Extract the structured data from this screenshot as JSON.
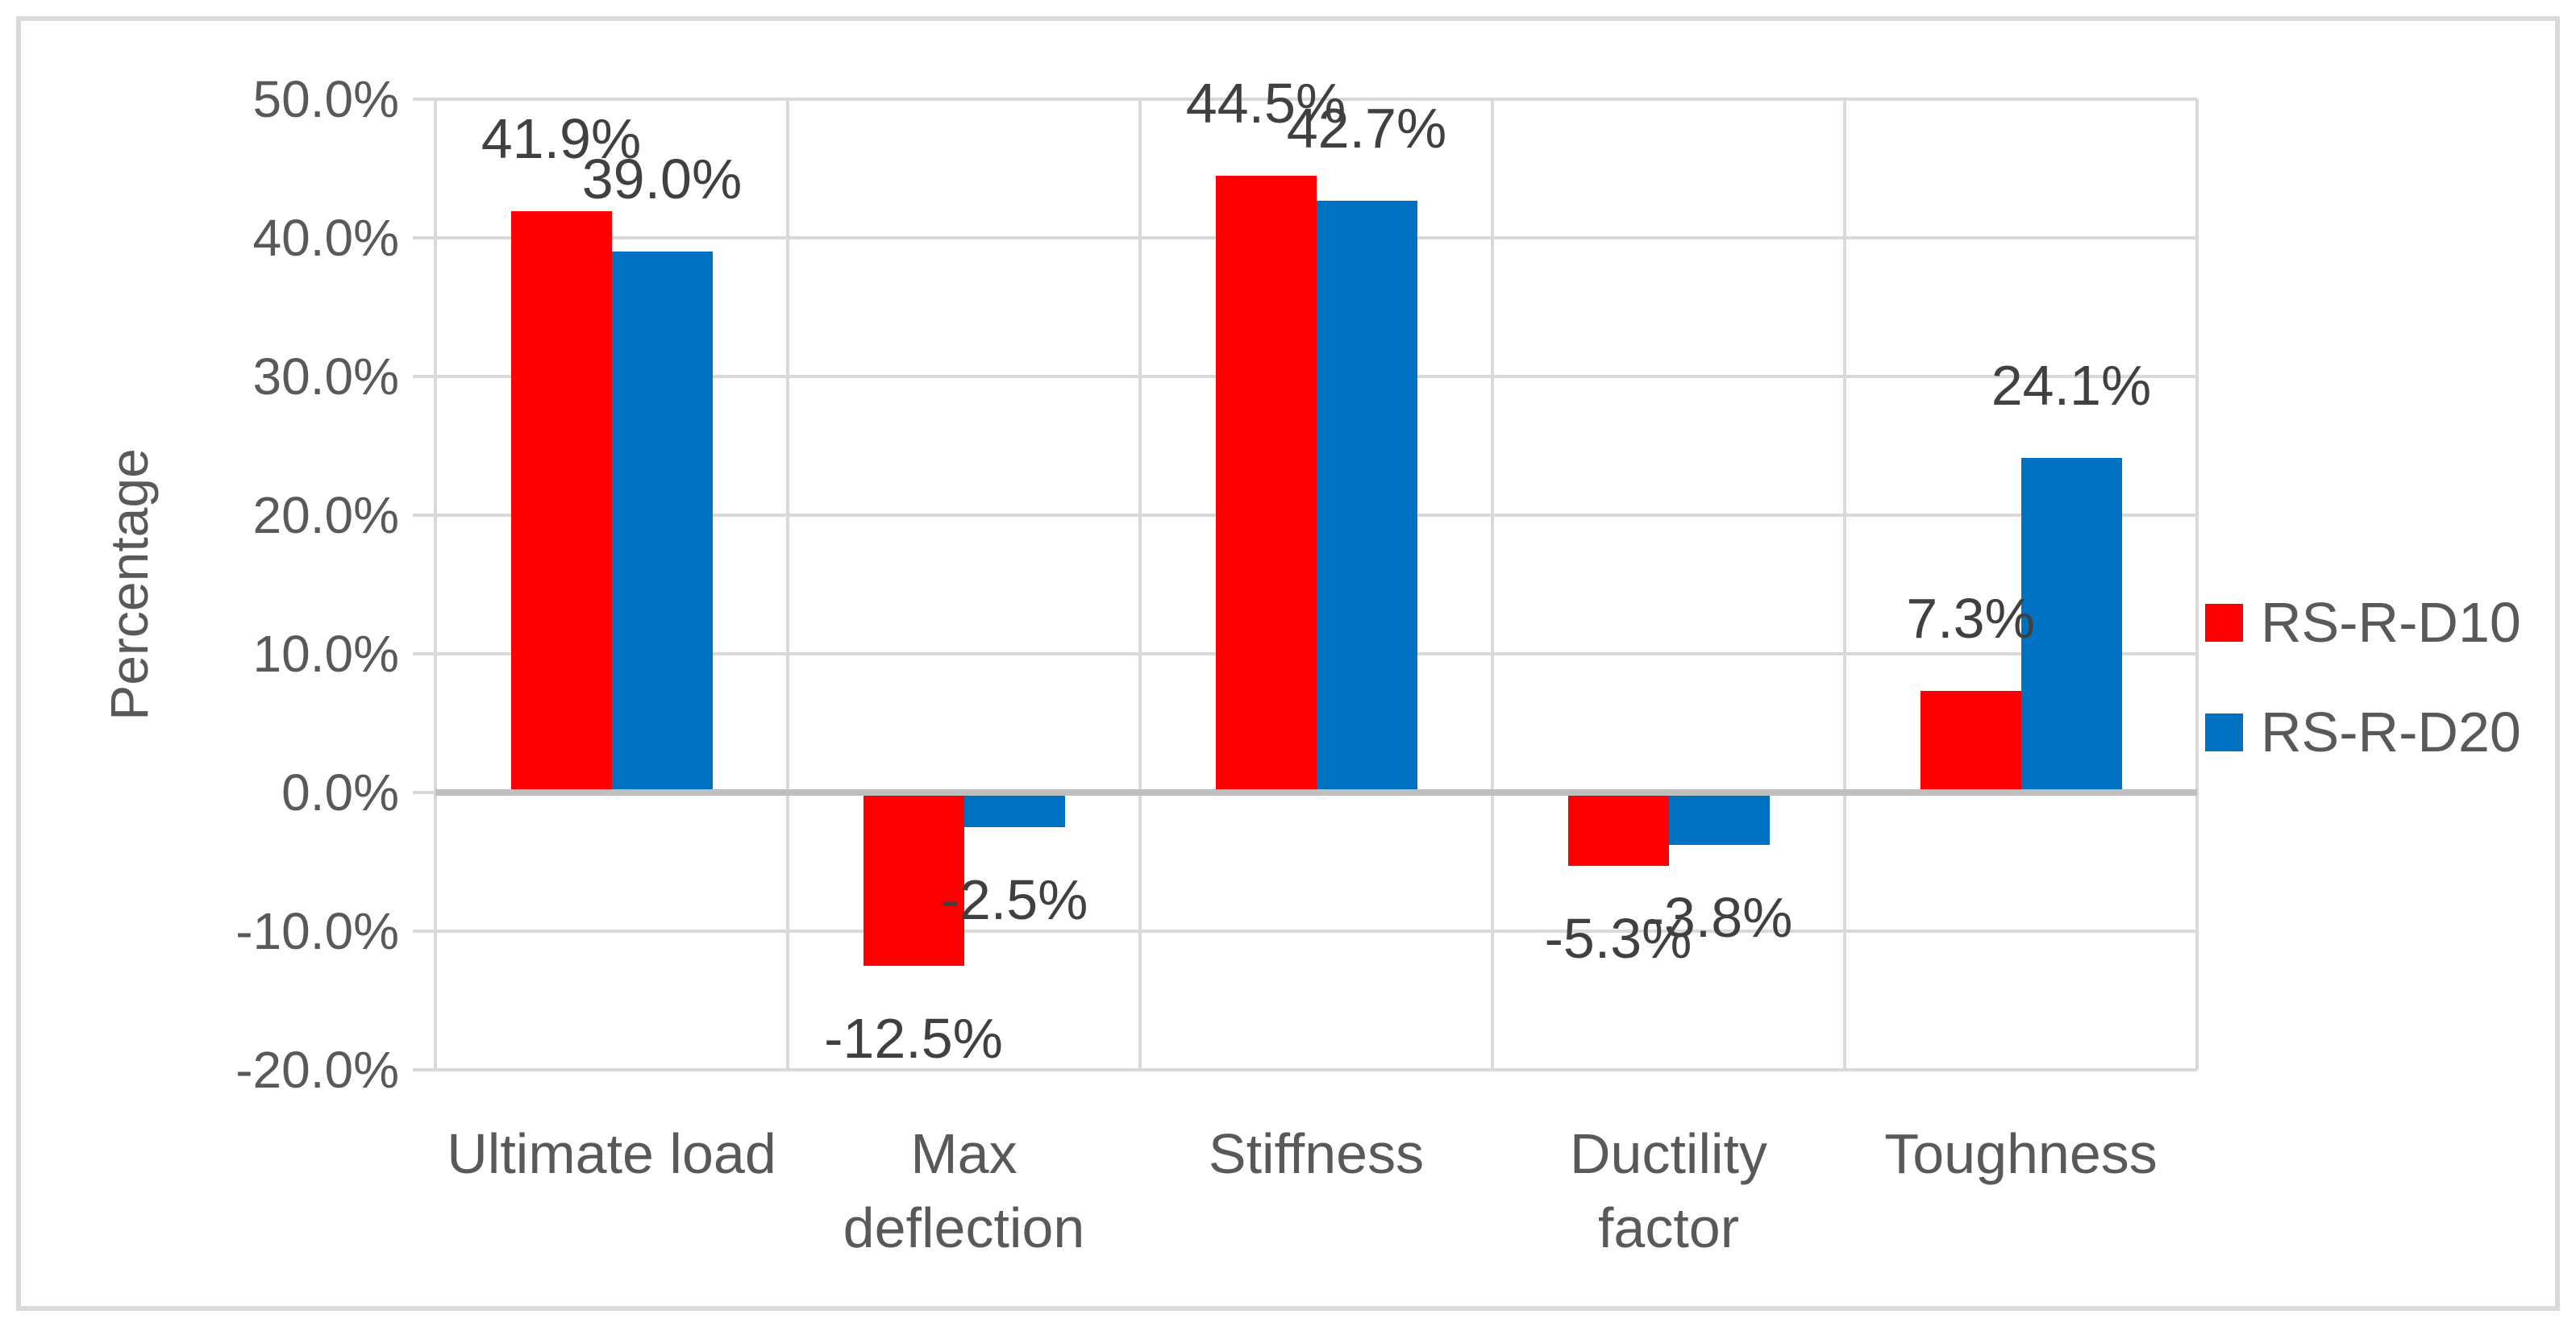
{
  "chart_data": {
    "type": "bar",
    "title": "",
    "ylabel": "Percentage",
    "xlabel": "",
    "categories": [
      "Ultimate load",
      "Max\ndeflection",
      "Stiffness",
      "Ductility\nfactor",
      "Toughness"
    ],
    "series": [
      {
        "name": "RS-R-D10",
        "color": "#FF0000",
        "values": [
          41.9,
          -12.5,
          44.5,
          -5.3,
          7.3
        ]
      },
      {
        "name": "RS-R-D20",
        "color": "#0070C0",
        "values": [
          39.0,
          -2.5,
          42.7,
          -3.8,
          24.1
        ]
      }
    ],
    "data_labels": [
      [
        "41.9%",
        "-12.5%",
        "44.5%",
        "-5.3%",
        "7.3%"
      ],
      [
        "39.0%",
        "-2.5%",
        "42.7%",
        "-3.8%",
        "24.1%"
      ]
    ],
    "y_ticks": [
      "50.0%",
      "40.0%",
      "30.0%",
      "20.0%",
      "10.0%",
      "0.0%",
      "-10.0%",
      "-20.0%"
    ],
    "y_tick_values": [
      50,
      40,
      30,
      20,
      10,
      0,
      -10,
      -20
    ],
    "ylim": [
      -20,
      50
    ],
    "grid": true,
    "legend_position": "right"
  },
  "colors": {
    "series_1": "#FF0000",
    "series_2": "#0070C0",
    "gridline": "#D9D9D9",
    "zero_line": "#BFBFBF",
    "frame_border": "#D9D9D9",
    "axis_text": "#595959",
    "data_label_text": "#404040",
    "background": "#FFFFFF"
  }
}
